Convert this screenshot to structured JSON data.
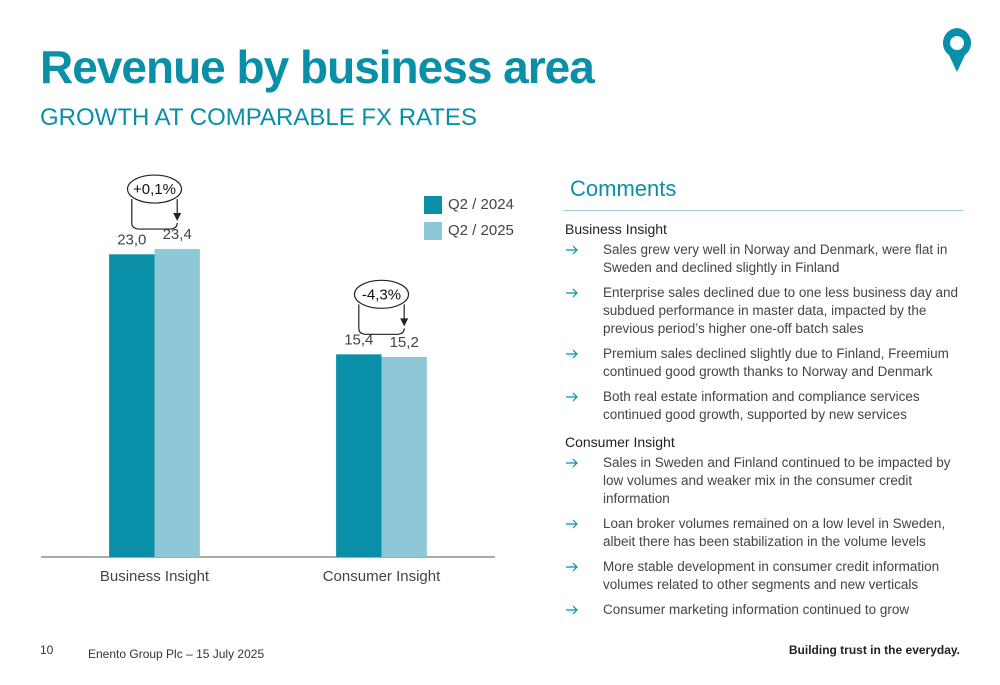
{
  "header": {
    "title": "Revenue by business area",
    "subtitle": "GROWTH AT COMPARABLE FX RATES"
  },
  "chart_data": {
    "type": "bar",
    "categories": [
      "Business Insight",
      "Consumer Insight"
    ],
    "series": [
      {
        "name": "Q2 / 2024",
        "color": "#0a8fa8",
        "values": [
          23.0,
          15.4
        ],
        "value_labels": [
          "23,0",
          "15,4"
        ]
      },
      {
        "name": "Q2 / 2025",
        "color": "#8ec8d6",
        "values": [
          23.4,
          15.2
        ],
        "value_labels": [
          "23,4",
          "15,2"
        ]
      }
    ],
    "annotations": [
      "+0,1%",
      "-4,3%"
    ],
    "ylim": [
      0,
      25
    ],
    "legend": "upper right"
  },
  "comments": {
    "title": "Comments",
    "sections": [
      {
        "heading": "Business Insight",
        "items": [
          "Sales grew very well in Norway and Denmark, were flat in Sweden and declined slightly in Finland",
          "Enterprise sales declined due to one less business day and subdued performance in master data, impacted by the previous period’s higher one-off batch sales",
          "Premium sales declined slightly due to Finland, Freemium continued good growth thanks to Norway and Denmark",
          "Both real estate information and compliance services continued good growth, supported by new services"
        ]
      },
      {
        "heading": "Consumer Insight",
        "items": [
          "Sales in Sweden and Finland continued to be impacted by low volumes and weaker mix in the consumer credit information",
          "Loan broker volumes remained on a low level in Sweden, albeit there has been stabilization in the volume levels",
          "More stable development in consumer credit information volumes related to other segments and new verticals",
          "Consumer marketing information continued to grow"
        ]
      }
    ]
  },
  "footer": {
    "page": "10",
    "source": "Enento Group Plc – 15 July 2025",
    "tagline": "Building trust in the everyday."
  }
}
